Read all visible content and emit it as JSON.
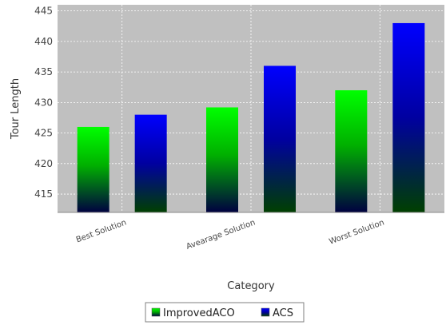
{
  "chart_data": {
    "type": "bar",
    "title": "",
    "xlabel": "Category",
    "ylabel": "Tour Length",
    "categories": [
      "Best Solution",
      "Avearage Solution",
      "Worst Solution"
    ],
    "series": [
      {
        "name": "ImprovedACO",
        "values": [
          426,
          429.2,
          432
        ],
        "color": "#00ff00"
      },
      {
        "name": "ACS",
        "values": [
          428,
          436,
          443
        ],
        "color": "#0000ff"
      }
    ],
    "ylim": [
      412,
      446
    ],
    "yticks": [
      415,
      420,
      425,
      430,
      435,
      440,
      445
    ],
    "grid": true,
    "legend_position": "bottom",
    "plot_background": "#c0c0c0"
  }
}
